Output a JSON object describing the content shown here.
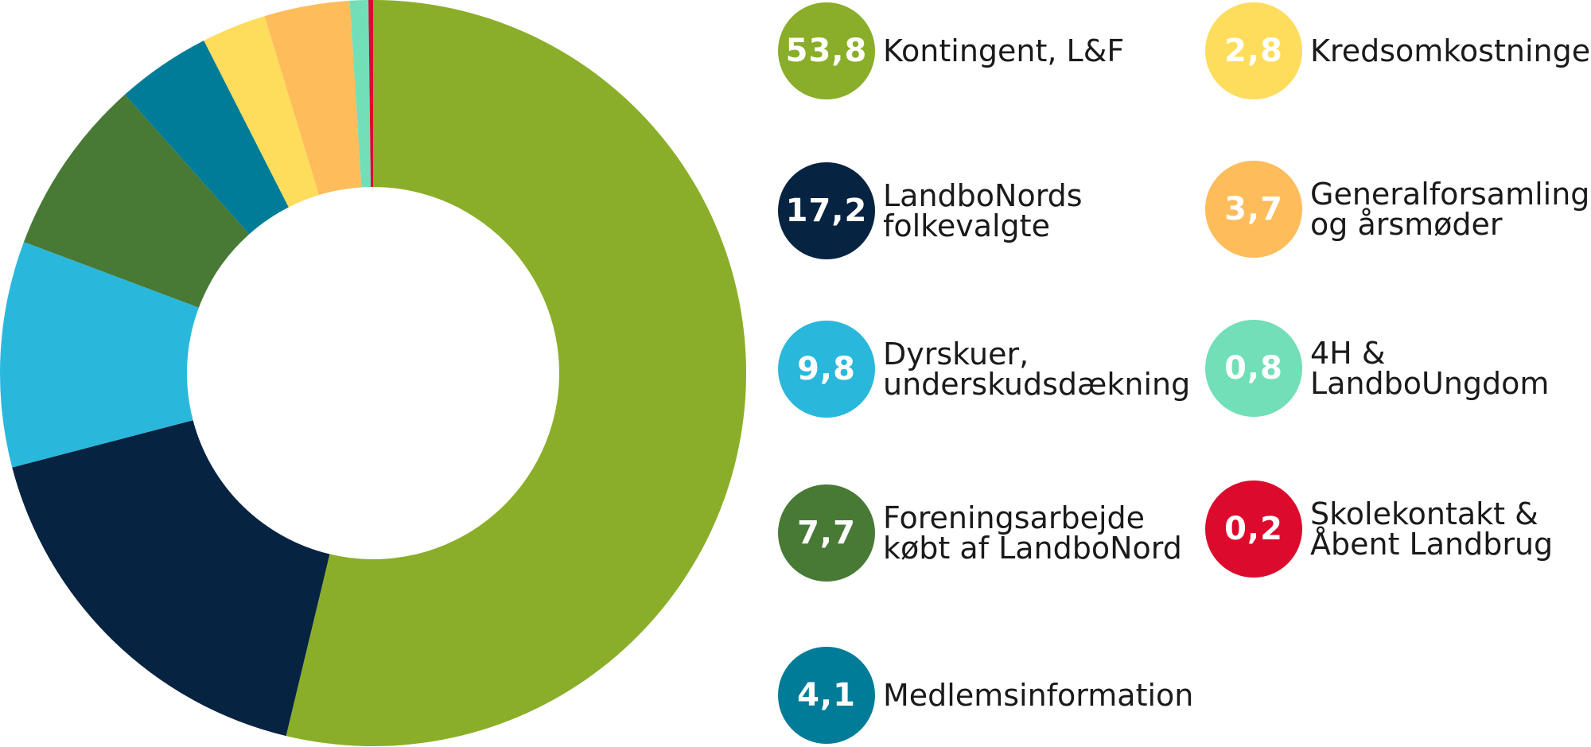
{
  "chart_data": {
    "type": "pie",
    "variant": "donut",
    "start_angle_deg": 0,
    "direction": "clockwise",
    "series": [
      {
        "value": 53.8,
        "value_label": "53,8",
        "label_lines": [
          "Kontingent, L&F"
        ],
        "color": "#8aae29"
      },
      {
        "value": 17.2,
        "value_label": "17,2",
        "label_lines": [
          "LandboNords",
          "folkevalgte"
        ],
        "color": "#062341"
      },
      {
        "value": 9.8,
        "value_label": "9,8",
        "label_lines": [
          "Dyrskuer,",
          "underskudsdækning"
        ],
        "color": "#29b8dc"
      },
      {
        "value": 7.7,
        "value_label": "7,7",
        "label_lines": [
          "Foreningsarbejde",
          "købt af LandboNord"
        ],
        "color": "#487a35"
      },
      {
        "value": 4.1,
        "value_label": "4,1",
        "label_lines": [
          "Medlemsinformation"
        ],
        "color": "#007c98"
      },
      {
        "value": 2.8,
        "value_label": "2,8",
        "label_lines": [
          "Kredsomkostninger"
        ],
        "color": "#fedc5c"
      },
      {
        "value": 3.7,
        "value_label": "3,7",
        "label_lines": [
          "Generalforsamling",
          "og årsmøder"
        ],
        "color": "#febc5b"
      },
      {
        "value": 0.8,
        "value_label": "0,8",
        "label_lines": [
          "4H &",
          "LandboUngdom"
        ],
        "color": "#72dfb8"
      },
      {
        "value": 0.2,
        "value_label": "0,2",
        "label_lines": [
          "Skolekontakt &",
          "Åbent Landbrug"
        ],
        "color": "#dc0a2c"
      }
    ],
    "legend_placement": "right, two columns"
  }
}
